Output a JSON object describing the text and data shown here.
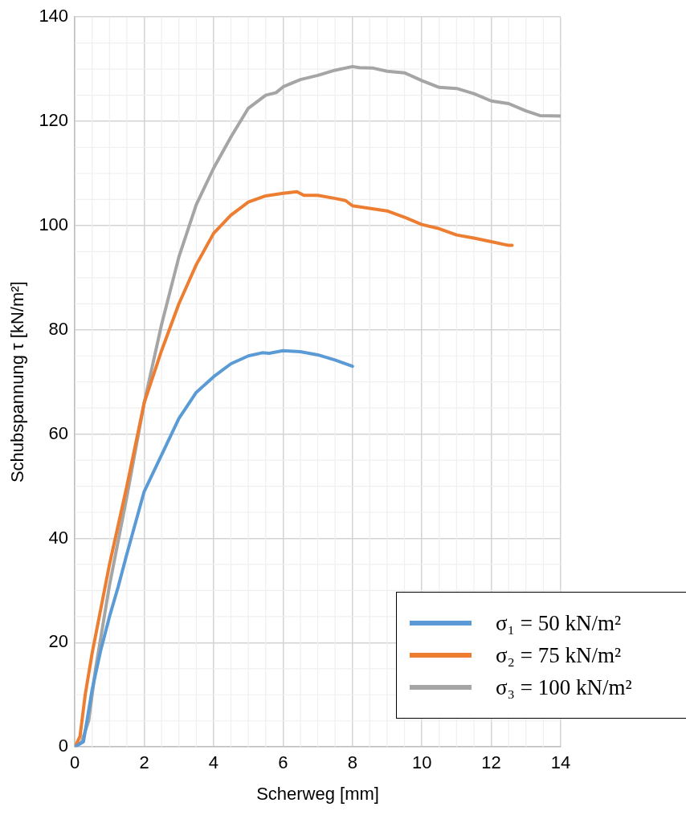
{
  "chart_data": {
    "type": "line",
    "xlabel": "Scherweg [mm]",
    "ylabel": "Schubspannung τ [kN/m²]",
    "xlim": [
      0,
      14
    ],
    "xticks": [
      0,
      2,
      4,
      6,
      8,
      10,
      12,
      14
    ],
    "ylim": [
      0,
      140
    ],
    "yticks": [
      0,
      20,
      40,
      60,
      80,
      100,
      120,
      140
    ],
    "grid": true,
    "legend": "bottom right",
    "marker": "none",
    "line_style": "solid",
    "series": [
      {
        "name": "σ₁ = 50 kN/m²",
        "color": "#5b9bd5",
        "x": [
          0,
          0.25,
          0.5,
          0.75,
          1,
          1.25,
          1.5,
          1.75,
          2,
          2.5,
          3,
          3.5,
          4,
          4.5,
          5,
          5.4,
          5.6,
          6,
          6.5,
          7,
          7.5,
          8
        ],
        "values": [
          0,
          1,
          11,
          18.6,
          25,
          30.7,
          37,
          43,
          49,
          56,
          63,
          68,
          71,
          73.5,
          75,
          75.6,
          75.5,
          76,
          75.8,
          75.2,
          74.2,
          73
        ]
      },
      {
        "name": "σ₂ = 75 kN/m²",
        "color": "#ed7d31",
        "x": [
          0,
          0.15,
          0.3,
          0.5,
          1,
          1.5,
          2,
          2.5,
          3,
          3.5,
          4,
          4.5,
          5,
          5.5,
          6,
          6.4,
          6.6,
          7,
          7.5,
          7.8,
          8,
          8.5,
          9,
          9.5,
          10,
          10.5,
          11,
          11.5,
          12,
          12.5,
          12.6
        ],
        "values": [
          0,
          2,
          10,
          18,
          35,
          50,
          66,
          76,
          85,
          92.5,
          98.5,
          102,
          104.5,
          105.7,
          106.2,
          106.5,
          105.8,
          105.8,
          105.2,
          104.8,
          103.8,
          103.3,
          102.8,
          101.6,
          100.2,
          99.4,
          98.2,
          97.6,
          96.9,
          96.2,
          96.2
        ]
      },
      {
        "name": "σ₃ = 100 kN/m²",
        "color": "#a5a5a5",
        "x": [
          0,
          0.2,
          0.4,
          0.6,
          1,
          1.5,
          2,
          2.5,
          3,
          3.5,
          4,
          4.5,
          5,
          5.5,
          5.8,
          6,
          6.5,
          7,
          7.5,
          8,
          8.2,
          8.6,
          9,
          9.5,
          10,
          10.5,
          11,
          11.5,
          12,
          12.5,
          13,
          13.4,
          14
        ],
        "values": [
          0,
          1,
          5,
          15,
          31,
          48,
          66,
          81,
          94,
          104,
          111,
          117,
          122.5,
          125,
          125.5,
          126.6,
          128,
          128.8,
          129.8,
          130.5,
          130.3,
          130.2,
          129.6,
          129.3,
          127.8,
          126.5,
          126.3,
          125.3,
          123.9,
          123.4,
          122,
          121.1,
          121
        ]
      }
    ]
  }
}
